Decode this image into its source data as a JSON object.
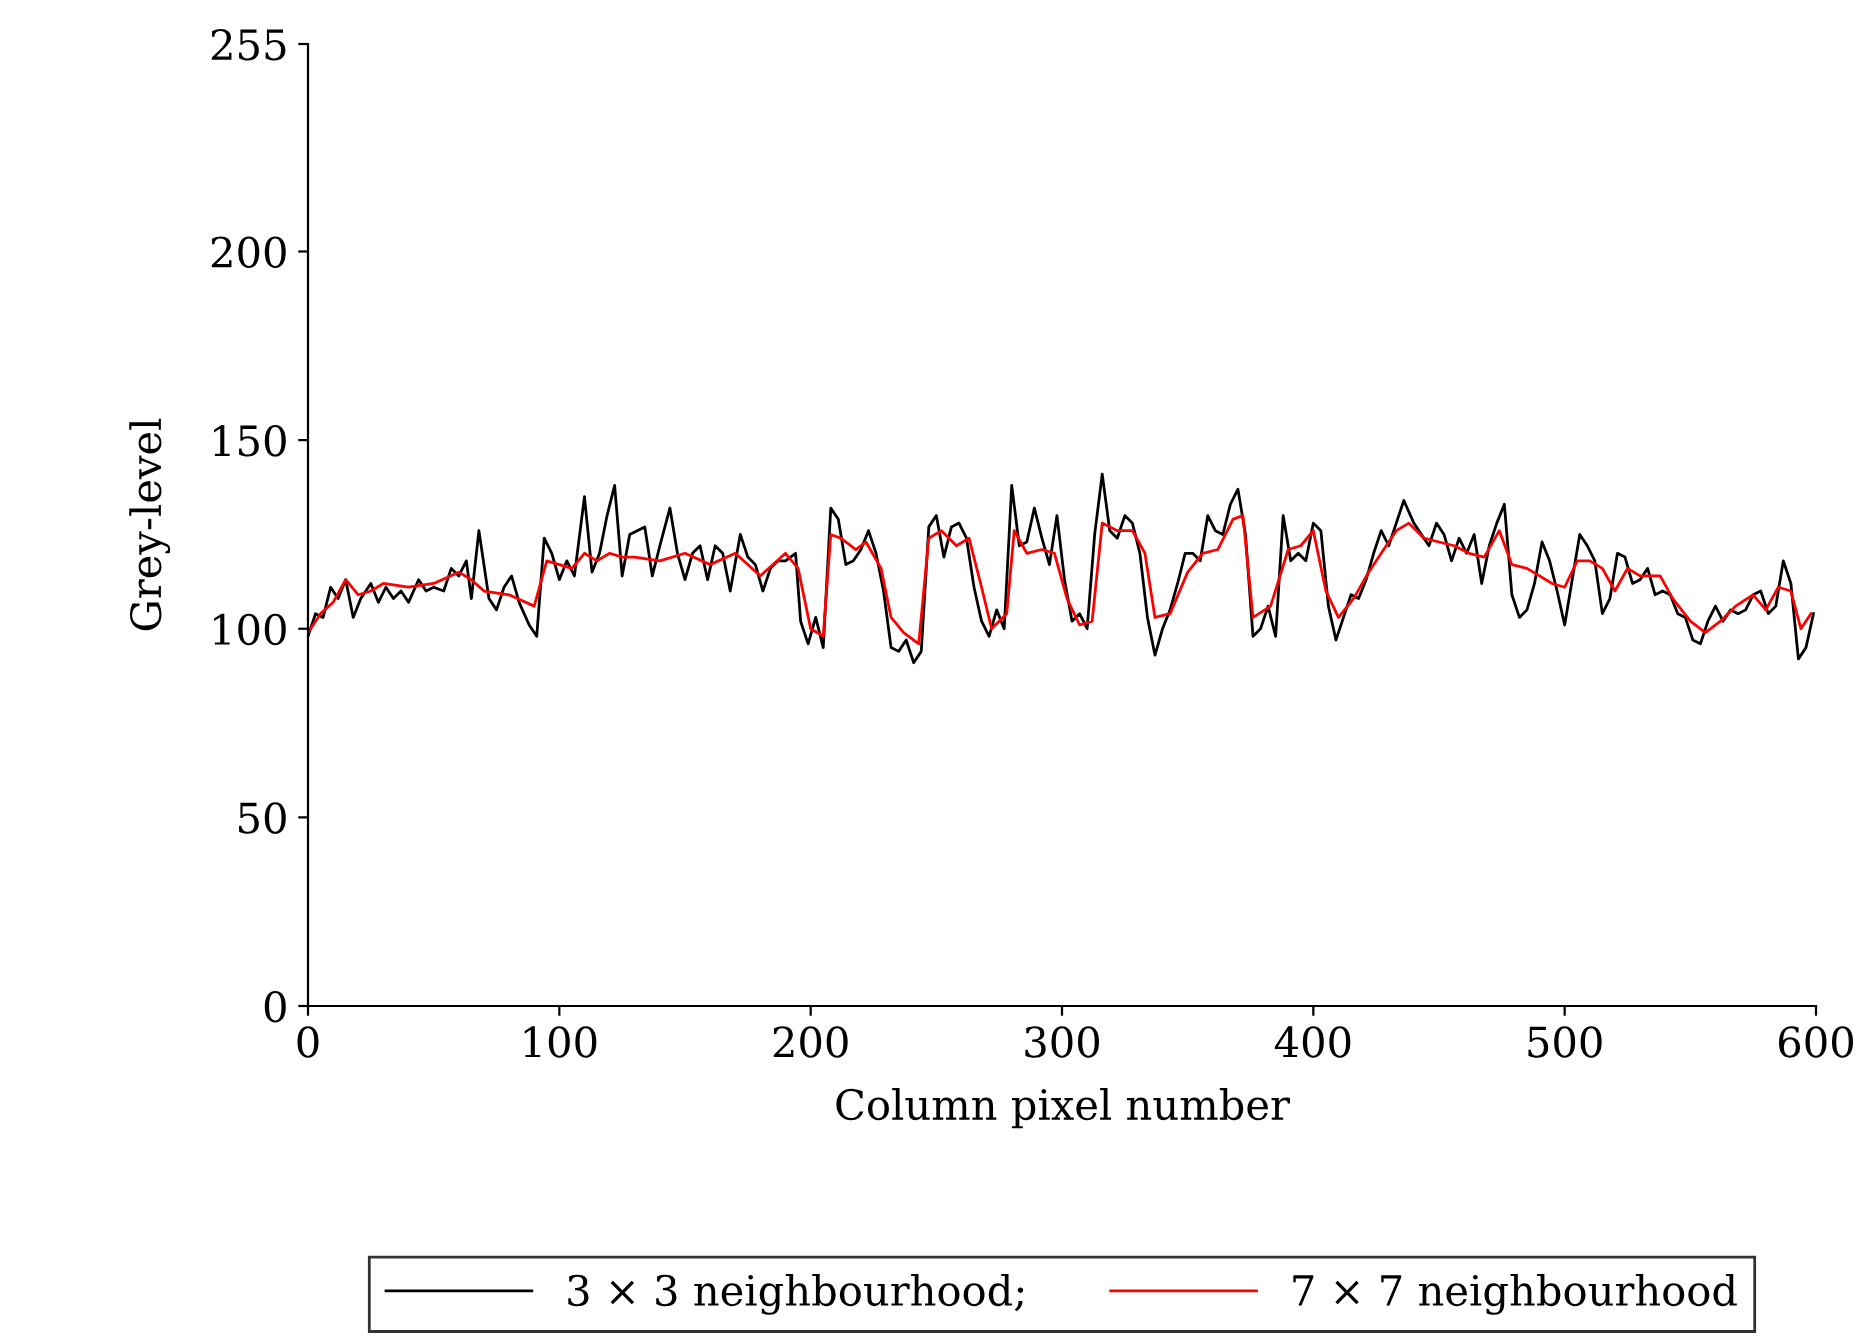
{
  "chart_data": {
    "type": "line",
    "xlabel": "Column pixel number",
    "ylabel": "Grey-level",
    "xlim": [
      0,
      600
    ],
    "ylim": [
      0,
      255
    ],
    "xticks": [
      0,
      100,
      200,
      300,
      400,
      500,
      600
    ],
    "yticks": [
      0,
      50,
      100,
      150,
      200,
      255
    ],
    "grid": false,
    "legend": "bottom",
    "marker": "none",
    "line_style": "solid",
    "series": [
      {
        "name": "3 × 3 neighbourhood;",
        "color": "#000000",
        "x": [
          0,
          3,
          6,
          9,
          12,
          15,
          18,
          21,
          25,
          28,
          31,
          34,
          37,
          40,
          44,
          47,
          50,
          54,
          57,
          60,
          63,
          65,
          68,
          72,
          75,
          78,
          81,
          84,
          88,
          91,
          94,
          97,
          100,
          103,
          106,
          110,
          113,
          116,
          119,
          122,
          125,
          128,
          131,
          134,
          137,
          140,
          144,
          147,
          150,
          153,
          156,
          159,
          162,
          165,
          168,
          172,
          175,
          178,
          181,
          184,
          187,
          190,
          194,
          196,
          199,
          202,
          205,
          208,
          211,
          214,
          217,
          220,
          223,
          226,
          229,
          232,
          235,
          238,
          241,
          244,
          247,
          250,
          253,
          256,
          259,
          262,
          265,
          268,
          271,
          274,
          277,
          280,
          283,
          286,
          289,
          292,
          295,
          298,
          301,
          304,
          307,
          310,
          313,
          316,
          319,
          322,
          325,
          328,
          331,
          334,
          337,
          340,
          343,
          346,
          349,
          352,
          355,
          358,
          361,
          364,
          367,
          370,
          373,
          376,
          379,
          382,
          385,
          388,
          391,
          394,
          397,
          400,
          403,
          406,
          409,
          412,
          415,
          418,
          421,
          424,
          427,
          430,
          433,
          436,
          440,
          443,
          446,
          449,
          452,
          455,
          458,
          461,
          464,
          467,
          470,
          473,
          476,
          479,
          482,
          485,
          488,
          491,
          494,
          497,
          500,
          503,
          506,
          509,
          512,
          515,
          518,
          521,
          524,
          527,
          530,
          533,
          536,
          539,
          542,
          545,
          548,
          551,
          554,
          557,
          560,
          563,
          566,
          569,
          572,
          575,
          578,
          581,
          584,
          587,
          590,
          593,
          596,
          599
        ],
        "values": [
          98,
          104,
          103,
          111,
          108,
          113,
          103,
          108,
          112,
          107,
          111,
          108,
          110,
          107,
          113,
          110,
          111,
          110,
          116,
          114,
          118,
          108,
          126,
          108,
          105,
          111,
          114,
          107,
          101,
          98,
          124,
          120,
          113,
          118,
          114,
          135,
          115,
          120,
          130,
          138,
          114,
          125,
          126,
          127,
          114,
          122,
          132,
          120,
          113,
          120,
          122,
          113,
          122,
          120,
          110,
          125,
          119,
          117,
          110,
          116,
          118,
          118,
          120,
          102,
          96,
          103,
          95,
          132,
          129,
          117,
          118,
          121,
          126,
          120,
          110,
          95,
          94,
          97,
          91,
          94,
          127,
          130,
          119,
          127,
          128,
          124,
          111,
          102,
          98,
          105,
          100,
          138,
          122,
          123,
          132,
          124,
          117,
          130,
          113,
          102,
          104,
          100,
          125,
          141,
          126,
          124,
          130,
          128,
          120,
          103,
          93,
          100,
          105,
          112,
          120,
          120,
          118,
          130,
          126,
          125,
          133,
          137,
          125,
          98,
          100,
          106,
          98,
          130,
          118,
          120,
          118,
          128,
          126,
          106,
          97,
          103,
          109,
          108,
          113,
          120,
          126,
          122,
          128,
          134,
          128,
          125,
          122,
          128,
          125,
          118,
          124,
          120,
          125,
          112,
          122,
          128,
          133,
          109,
          103,
          105,
          112,
          123,
          118,
          110,
          101,
          113,
          125,
          122,
          118,
          104,
          108,
          120,
          119,
          112,
          113,
          116,
          109,
          110,
          109,
          104,
          103,
          97,
          96,
          102,
          106,
          102,
          105,
          104,
          105,
          109,
          110,
          104,
          106,
          118,
          112,
          92,
          95,
          104
        ]
      },
      {
        "name": "7 × 7 neighbourhood",
        "color": "#ff0000",
        "x": [
          0,
          5,
          10,
          15,
          20,
          25,
          30,
          40,
          50,
          60,
          65,
          70,
          80,
          90,
          95,
          100,
          105,
          110,
          115,
          120,
          125,
          130,
          140,
          150,
          160,
          170,
          180,
          190,
          195,
          200,
          205,
          208,
          212,
          218,
          222,
          228,
          232,
          237,
          243,
          247,
          252,
          258,
          263,
          268,
          272,
          278,
          281,
          286,
          292,
          297,
          302,
          307,
          312,
          316,
          322,
          328,
          333,
          337,
          343,
          350,
          356,
          362,
          368,
          372,
          376,
          383,
          390,
          395,
          400,
          405,
          410,
          416,
          422,
          428,
          433,
          438,
          444,
          450,
          456,
          462,
          468,
          474,
          479,
          485,
          490,
          495,
          500,
          505,
          510,
          515,
          520,
          525,
          530,
          538,
          543,
          550,
          556,
          562,
          568,
          575,
          580,
          585,
          590,
          594,
          598
        ],
        "values": [
          99,
          104,
          107,
          113,
          109,
          110,
          112,
          111,
          112,
          115,
          113,
          110,
          109,
          106,
          118,
          117,
          116,
          120,
          118,
          120,
          119,
          119,
          118,
          120,
          117,
          120,
          114,
          120,
          116,
          100,
          98,
          125,
          124,
          121,
          123,
          116,
          103,
          99,
          96,
          124,
          126,
          122,
          124,
          111,
          100,
          104,
          126,
          120,
          121,
          120,
          108,
          101,
          102,
          128,
          126,
          126,
          120,
          103,
          104,
          115,
          120,
          121,
          129,
          130,
          103,
          106,
          121,
          122,
          126,
          110,
          103,
          108,
          115,
          121,
          126,
          128,
          124,
          123,
          122,
          120,
          119,
          126,
          117,
          116,
          114,
          112,
          111,
          118,
          118,
          116,
          110,
          116,
          114,
          114,
          108,
          102,
          99,
          102,
          106,
          109,
          105,
          111,
          110,
          100,
          104
        ]
      }
    ]
  }
}
